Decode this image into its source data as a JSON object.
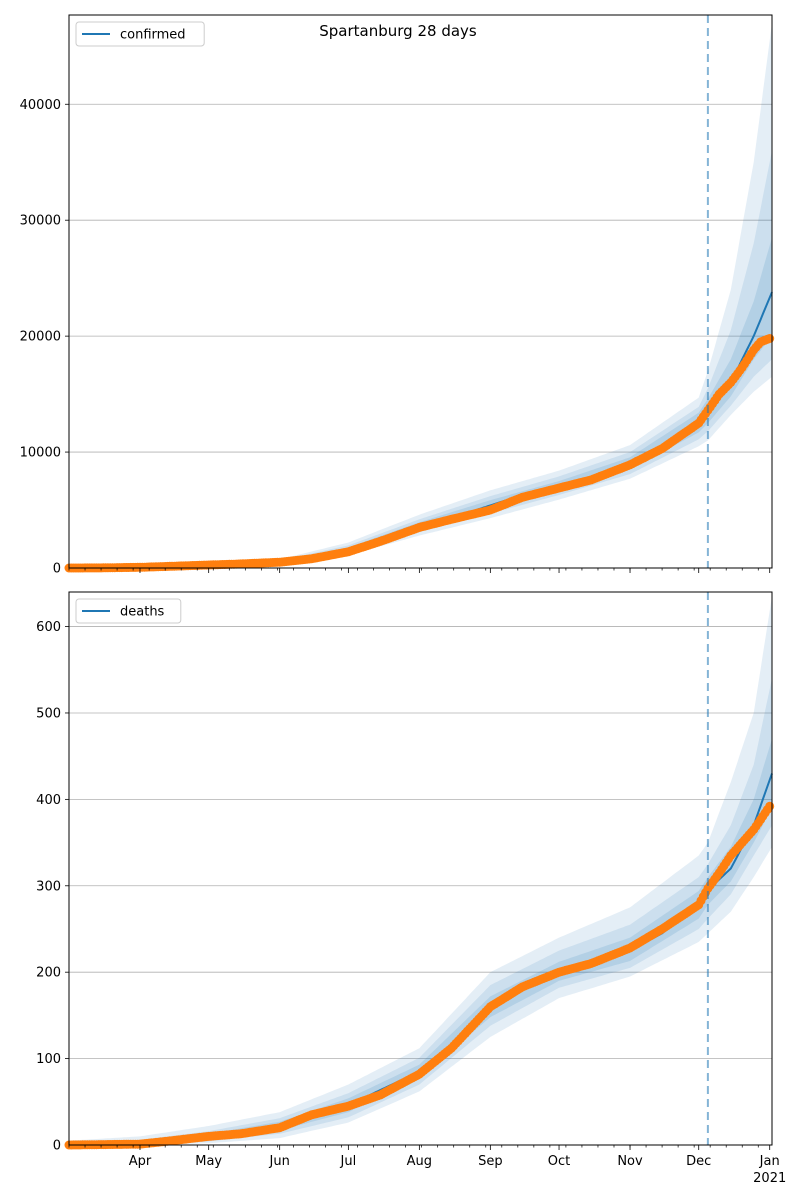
{
  "figure": {
    "title": "Spartanburg 28 days"
  },
  "colors": {
    "observed": "#ff7f0e",
    "model": "#1f77b4",
    "band": "#1f77b4",
    "grid": "#b0b0b0"
  },
  "x_axis": {
    "month_ticks": [
      {
        "label": "Apr",
        "day": 31
      },
      {
        "label": "May",
        "day": 61
      },
      {
        "label": "Jun",
        "day": 92
      },
      {
        "label": "Jul",
        "day": 122
      },
      {
        "label": "Aug",
        "day": 153
      },
      {
        "label": "Sep",
        "day": 184
      },
      {
        "label": "Oct",
        "day": 214
      },
      {
        "label": "Nov",
        "day": 245
      },
      {
        "label": "Dec",
        "day": 275
      },
      {
        "label": "Jan",
        "day": 306
      }
    ],
    "year_label": "2021",
    "start_date": "2020-03-01",
    "end_date": "2021-01-02",
    "forecast_start_date": "2020-12-05"
  },
  "chart_data": [
    {
      "type": "line",
      "legend_label": "confirmed",
      "legend_position": "upper left",
      "grid": "horizontal",
      "ylim": [
        0,
        47700
      ],
      "yticks": [
        0,
        10000,
        20000,
        30000,
        40000
      ],
      "model_curve": [
        [
          "2020-03-01",
          0
        ],
        [
          "2020-04-01",
          50
        ],
        [
          "2020-05-01",
          220
        ],
        [
          "2020-06-01",
          500
        ],
        [
          "2020-06-16",
          1000
        ],
        [
          "2020-07-01",
          1600
        ],
        [
          "2020-07-15",
          2500
        ],
        [
          "2020-08-01",
          3600
        ],
        [
          "2020-08-15",
          4300
        ],
        [
          "2020-09-01",
          5400
        ],
        [
          "2020-09-15",
          6300
        ],
        [
          "2020-10-01",
          7000
        ],
        [
          "2020-10-15",
          7700
        ],
        [
          "2020-11-01",
          9000
        ],
        [
          "2020-11-15",
          10400
        ],
        [
          "2020-12-01",
          12600
        ],
        [
          "2020-12-05",
          13500
        ],
        [
          "2020-12-15",
          16000
        ],
        [
          "2020-12-25",
          20000
        ],
        [
          "2021-01-02",
          23800
        ]
      ],
      "band_outer": [
        [
          "2020-03-01",
          0,
          0
        ],
        [
          "2020-06-01",
          300,
          750
        ],
        [
          "2020-07-01",
          1100,
          2200
        ],
        [
          "2020-08-01",
          2800,
          4600
        ],
        [
          "2020-09-01",
          4300,
          6700
        ],
        [
          "2020-10-01",
          5900,
          8400
        ],
        [
          "2020-11-01",
          7700,
          10600
        ],
        [
          "2020-12-01",
          10500,
          14700
        ],
        [
          "2020-12-05",
          11000,
          17000
        ],
        [
          "2020-12-15",
          13200,
          24000
        ],
        [
          "2020-12-25",
          15200,
          35000
        ],
        [
          "2021-01-02",
          16500,
          47000
        ]
      ],
      "band_mid": [
        [
          "2020-03-01",
          0,
          0
        ],
        [
          "2020-06-01",
          370,
          650
        ],
        [
          "2020-07-01",
          1300,
          1950
        ],
        [
          "2020-08-01",
          3100,
          4200
        ],
        [
          "2020-09-01",
          4700,
          6200
        ],
        [
          "2020-10-01",
          6300,
          7900
        ],
        [
          "2020-11-01",
          8100,
          10000
        ],
        [
          "2020-12-01",
          11100,
          13900
        ],
        [
          "2020-12-05",
          11800,
          15500
        ],
        [
          "2020-12-15",
          14000,
          20500
        ],
        [
          "2020-12-25",
          16500,
          28000
        ],
        [
          "2021-01-02",
          18000,
          36000
        ]
      ],
      "band_inner": [
        [
          "2020-03-01",
          0,
          0
        ],
        [
          "2020-06-01",
          420,
          590
        ],
        [
          "2020-07-01",
          1430,
          1780
        ],
        [
          "2020-08-01",
          3300,
          3950
        ],
        [
          "2020-09-01",
          5000,
          5850
        ],
        [
          "2020-10-01",
          6600,
          7500
        ],
        [
          "2020-11-01",
          8500,
          9550
        ],
        [
          "2020-12-01",
          11700,
          13400
        ],
        [
          "2020-12-05",
          12500,
          14600
        ],
        [
          "2020-12-15",
          14800,
          18000
        ],
        [
          "2020-12-25",
          18000,
          23000
        ],
        [
          "2021-01-02",
          20000,
          28500
        ]
      ],
      "observed": [
        [
          "2020-03-01",
          0
        ],
        [
          "2020-03-15",
          10
        ],
        [
          "2020-04-01",
          60
        ],
        [
          "2020-04-15",
          150
        ],
        [
          "2020-05-01",
          260
        ],
        [
          "2020-05-15",
          350
        ],
        [
          "2020-06-01",
          500
        ],
        [
          "2020-06-15",
          800
        ],
        [
          "2020-07-01",
          1400
        ],
        [
          "2020-07-15",
          2300
        ],
        [
          "2020-08-01",
          3500
        ],
        [
          "2020-08-15",
          4200
        ],
        [
          "2020-09-01",
          5000
        ],
        [
          "2020-09-15",
          6100
        ],
        [
          "2020-10-01",
          6900
        ],
        [
          "2020-10-15",
          7600
        ],
        [
          "2020-11-01",
          8900
        ],
        [
          "2020-11-15",
          10300
        ],
        [
          "2020-12-01",
          12500
        ],
        [
          "2020-12-05",
          13600
        ],
        [
          "2020-12-10",
          15000
        ],
        [
          "2020-12-15",
          16000
        ],
        [
          "2020-12-20",
          17300
        ],
        [
          "2020-12-25",
          18800
        ],
        [
          "2020-12-28",
          19500
        ],
        [
          "2021-01-01",
          19800
        ]
      ]
    },
    {
      "type": "line",
      "legend_label": "deaths",
      "legend_position": "upper left",
      "grid": "horizontal",
      "ylim": [
        0,
        640
      ],
      "yticks": [
        0,
        100,
        200,
        300,
        400,
        500,
        600
      ],
      "model_curve": [
        [
          "2020-03-01",
          0
        ],
        [
          "2020-04-01",
          2
        ],
        [
          "2020-05-01",
          10
        ],
        [
          "2020-06-01",
          22
        ],
        [
          "2020-07-01",
          46
        ],
        [
          "2020-08-01",
          85
        ],
        [
          "2020-08-15",
          115
        ],
        [
          "2020-09-01",
          160
        ],
        [
          "2020-09-15",
          180
        ],
        [
          "2020-10-01",
          200
        ],
        [
          "2020-10-15",
          210
        ],
        [
          "2020-11-01",
          225
        ],
        [
          "2020-11-15",
          245
        ],
        [
          "2020-12-01",
          278
        ],
        [
          "2020-12-05",
          295
        ],
        [
          "2020-12-15",
          320
        ],
        [
          "2020-12-25",
          370
        ],
        [
          "2021-01-02",
          430
        ]
      ],
      "band_outer": [
        [
          "2020-03-01",
          0,
          5
        ],
        [
          "2020-04-01",
          0,
          10
        ],
        [
          "2020-05-01",
          2,
          22
        ],
        [
          "2020-06-01",
          8,
          38
        ],
        [
          "2020-07-01",
          26,
          70
        ],
        [
          "2020-08-01",
          62,
          112
        ],
        [
          "2020-09-01",
          125,
          200
        ],
        [
          "2020-10-01",
          170,
          240
        ],
        [
          "2020-11-01",
          195,
          275
        ],
        [
          "2020-12-01",
          235,
          335
        ],
        [
          "2020-12-05",
          245,
          350
        ],
        [
          "2020-12-15",
          270,
          420
        ],
        [
          "2020-12-25",
          310,
          500
        ],
        [
          "2021-01-02",
          345,
          635
        ]
      ],
      "band_mid": [
        [
          "2020-03-01",
          0,
          3
        ],
        [
          "2020-04-01",
          0,
          6
        ],
        [
          "2020-05-01",
          4,
          16
        ],
        [
          "2020-06-01",
          13,
          31
        ],
        [
          "2020-07-01",
          32,
          60
        ],
        [
          "2020-08-01",
          70,
          101
        ],
        [
          "2020-09-01",
          138,
          185
        ],
        [
          "2020-10-01",
          182,
          225
        ],
        [
          "2020-11-01",
          205,
          255
        ],
        [
          "2020-12-01",
          250,
          310
        ],
        [
          "2020-12-05",
          262,
          325
        ],
        [
          "2020-12-15",
          290,
          370
        ],
        [
          "2020-12-25",
          335,
          440
        ],
        [
          "2021-01-02",
          370,
          540
        ]
      ],
      "band_inner": [
        [
          "2020-03-01",
          0,
          2
        ],
        [
          "2020-04-01",
          0,
          4
        ],
        [
          "2020-05-01",
          6,
          13
        ],
        [
          "2020-06-01",
          17,
          27
        ],
        [
          "2020-07-01",
          38,
          54
        ],
        [
          "2020-08-01",
          78,
          93
        ],
        [
          "2020-09-01",
          148,
          172
        ],
        [
          "2020-10-01",
          190,
          212
        ],
        [
          "2020-11-01",
          213,
          240
        ],
        [
          "2020-12-01",
          262,
          294
        ],
        [
          "2020-12-05",
          278,
          310
        ],
        [
          "2020-12-15",
          305,
          345
        ],
        [
          "2020-12-25",
          350,
          400
        ],
        [
          "2021-01-02",
          390,
          470
        ]
      ],
      "observed": [
        [
          "2020-03-01",
          0
        ],
        [
          "2020-04-01",
          1
        ],
        [
          "2020-04-15",
          5
        ],
        [
          "2020-05-01",
          10
        ],
        [
          "2020-05-15",
          13
        ],
        [
          "2020-06-01",
          20
        ],
        [
          "2020-06-15",
          35
        ],
        [
          "2020-07-01",
          45
        ],
        [
          "2020-07-15",
          58
        ],
        [
          "2020-08-01",
          82
        ],
        [
          "2020-08-15",
          112
        ],
        [
          "2020-09-01",
          160
        ],
        [
          "2020-09-15",
          183
        ],
        [
          "2020-10-01",
          200
        ],
        [
          "2020-10-15",
          210
        ],
        [
          "2020-11-01",
          228
        ],
        [
          "2020-11-15",
          250
        ],
        [
          "2020-12-01",
          278
        ],
        [
          "2020-12-05",
          297
        ],
        [
          "2020-12-10",
          315
        ],
        [
          "2020-12-15",
          335
        ],
        [
          "2020-12-20",
          350
        ],
        [
          "2020-12-25",
          365
        ],
        [
          "2021-01-01",
          392
        ]
      ]
    }
  ]
}
